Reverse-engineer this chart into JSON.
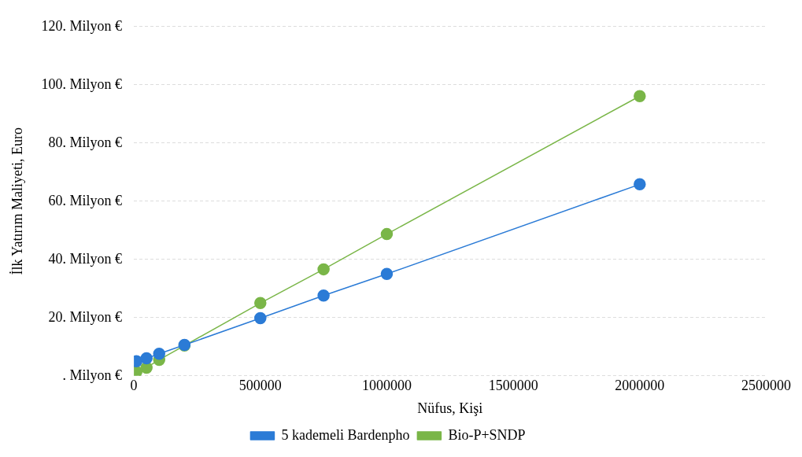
{
  "chart_data": {
    "type": "line",
    "xlabel": "Nüfus, Kişi",
    "ylabel": "İlk Yatırım Maliyeti, Euro",
    "xlim": [
      0,
      2500000
    ],
    "xticks": [
      0,
      500000,
      1000000,
      1500000,
      2000000,
      2500000
    ],
    "ylim": [
      0,
      120
    ],
    "yticks": [
      {
        "value": 0,
        "label": ". Milyon €"
      },
      {
        "value": 20,
        "label": "20. Milyon €"
      },
      {
        "value": 40,
        "label": "40. Milyon €"
      },
      {
        "value": 60,
        "label": "60. Milyon €"
      },
      {
        "value": 80,
        "label": "80. Milyon €"
      },
      {
        "value": 100,
        "label": "100. Milyon €"
      },
      {
        "value": 120,
        "label": "120. Milyon €"
      }
    ],
    "x": [
      10000,
      50000,
      100000,
      200000,
      500000,
      750000,
      1000000,
      2000000
    ],
    "series": [
      {
        "name": "Bio-P+SNDP",
        "color": "#7ab648",
        "values": [
          1.4,
          2.8,
          5.5,
          10.4,
          25.0,
          36.6,
          48.7,
          96.1
        ]
      },
      {
        "name": "5 kademeli Bardenpho",
        "color": "#2b7bd6",
        "values": [
          5.0,
          6.0,
          7.6,
          10.6,
          19.8,
          27.6,
          35.0,
          65.8
        ]
      }
    ],
    "grid": "y",
    "legend": "bottom",
    "marker": "circle",
    "line_style": "solid"
  }
}
